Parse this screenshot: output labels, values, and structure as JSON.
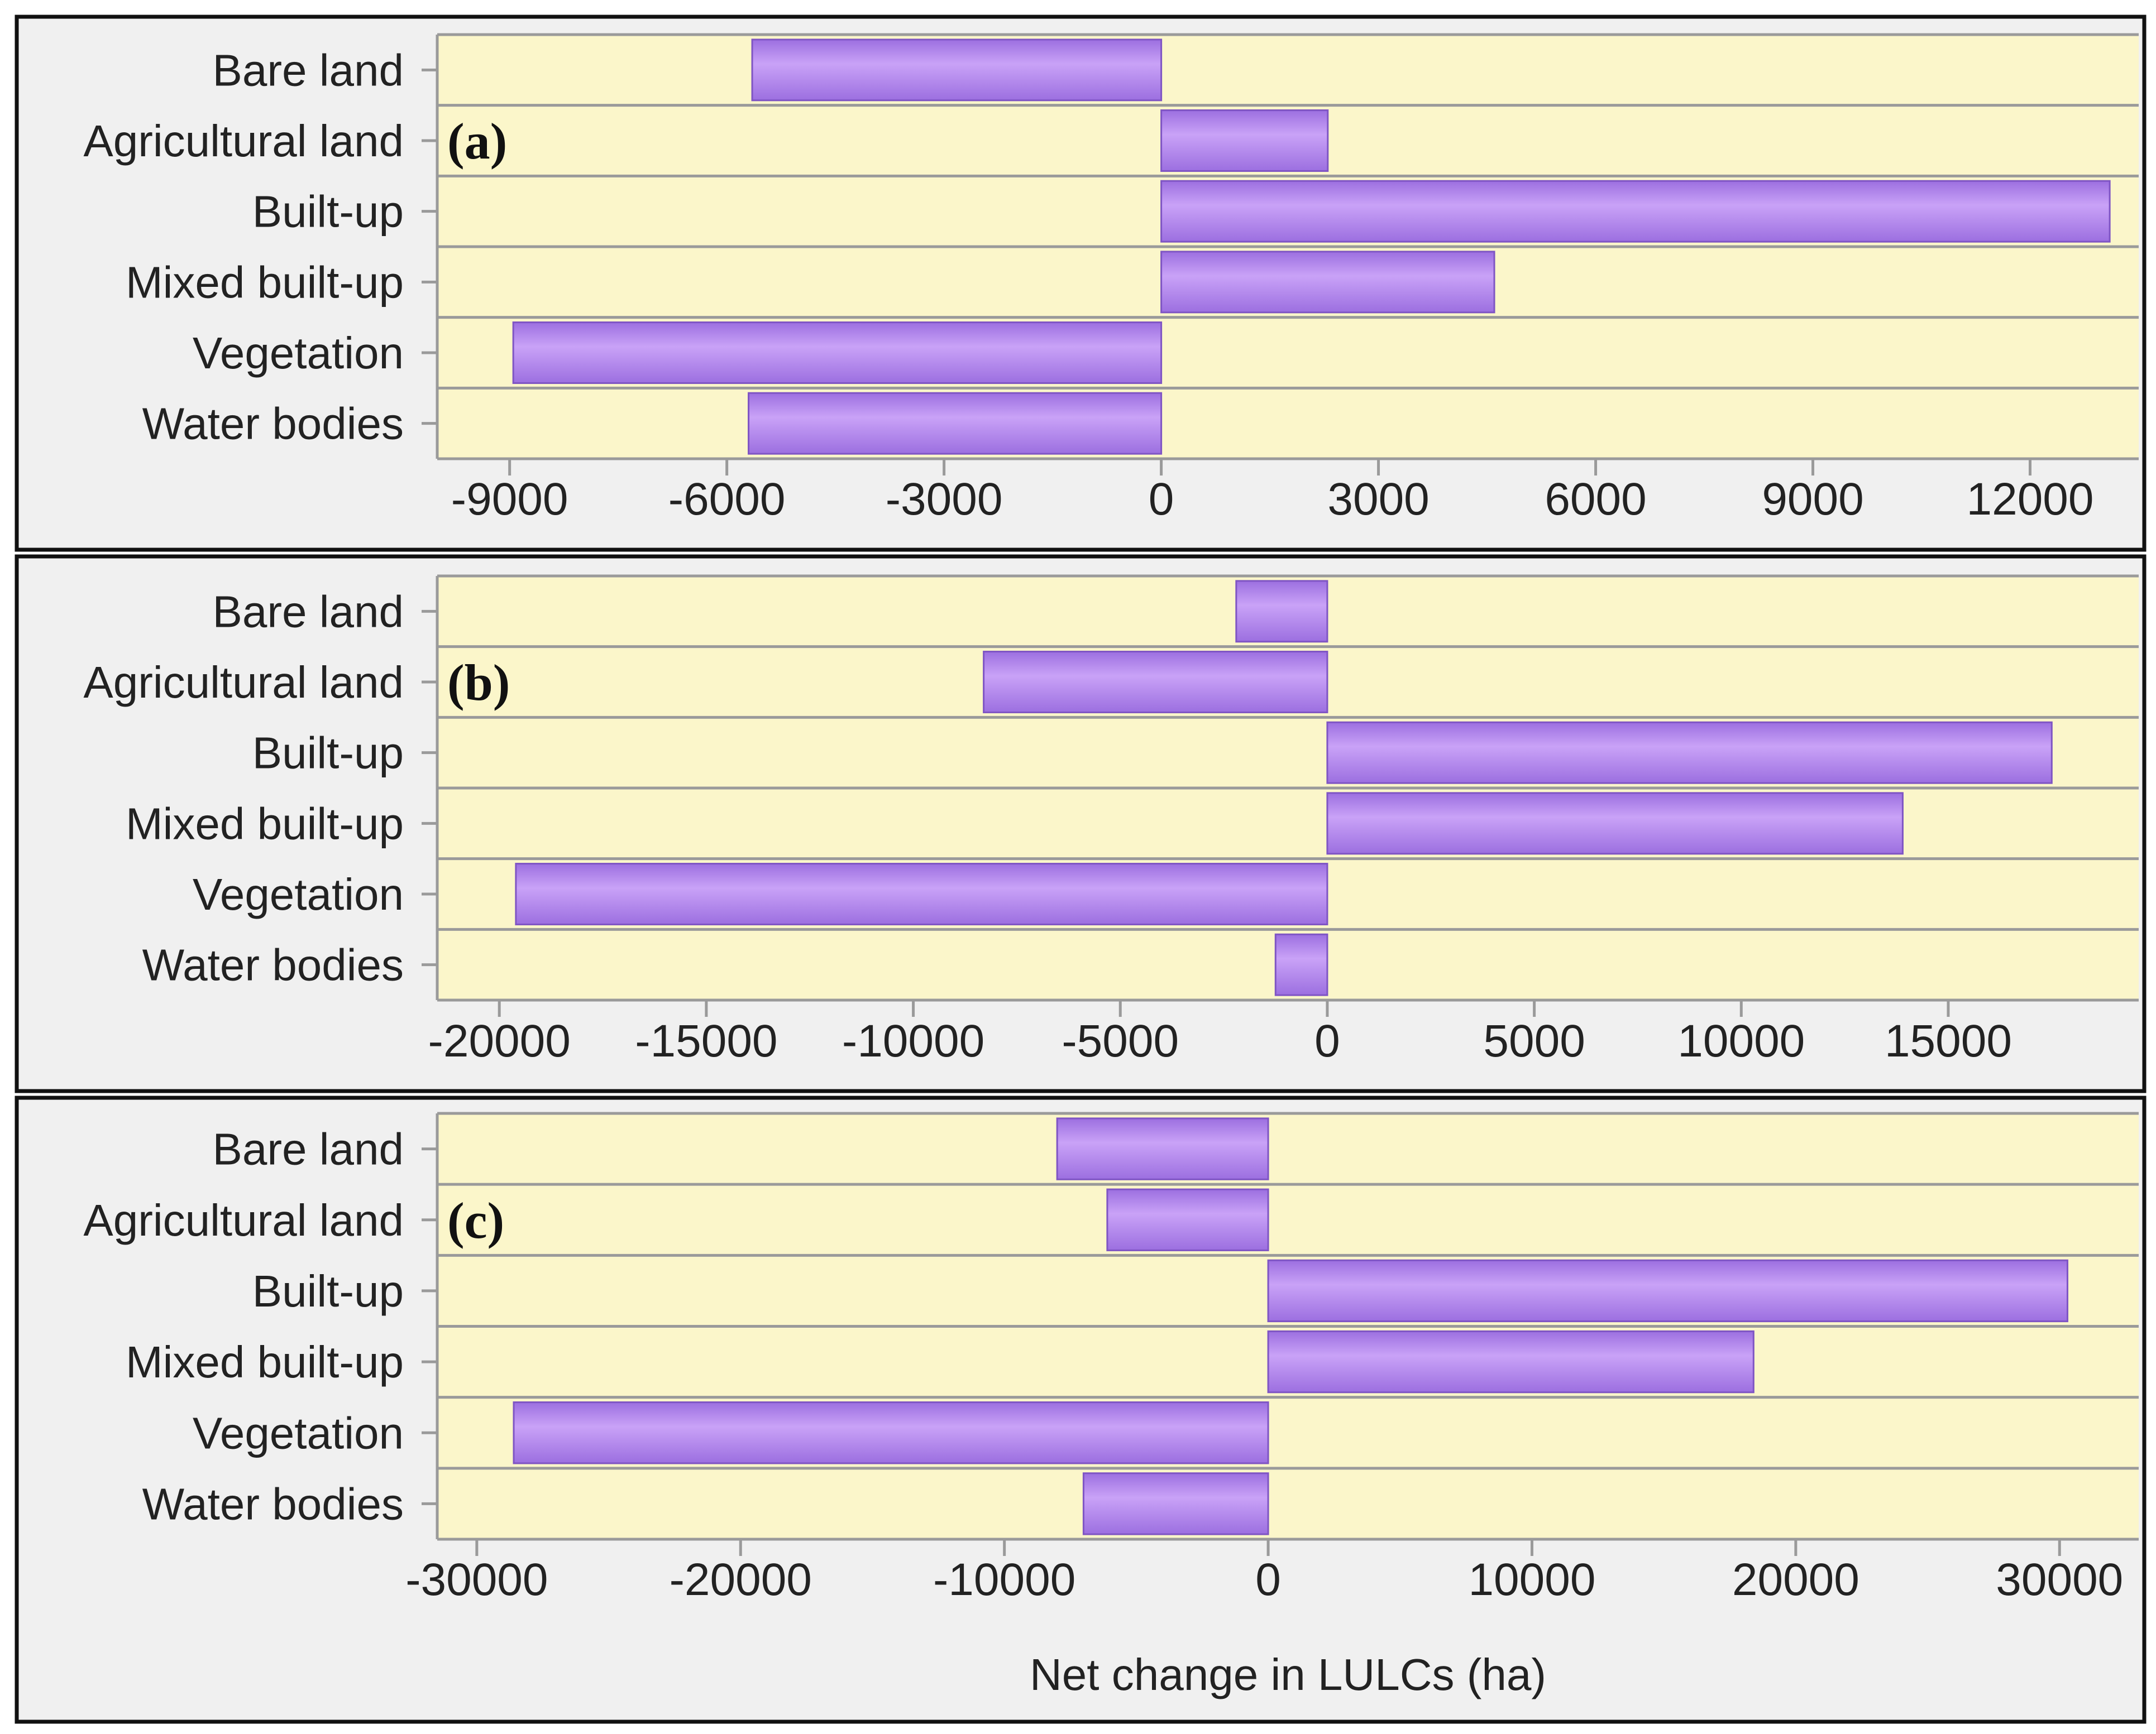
{
  "colors": {
    "panel_background": "#f0f0f0",
    "plot_background": "#fbf6ca",
    "bar_fill_light": "#c9a2f7",
    "bar_fill_dark": "#9c6fe0",
    "bar_stroke": "#7f55c4",
    "gridline": "#9a9a9a",
    "frame": "#111111"
  },
  "chart_data": [
    {
      "type": "bar",
      "orientation": "horizontal",
      "panel_label": "(a)",
      "categories": [
        "Bare land",
        "Agricultural land",
        "Built-up",
        "Mixed built-up",
        "Vegetation",
        "Water bodies"
      ],
      "values": [
        -5650,
        2300,
        13100,
        4600,
        -8950,
        -5700
      ],
      "xlim": [
        -10000,
        13500
      ],
      "xticks": [
        -9000,
        -6000,
        -3000,
        0,
        3000,
        6000,
        9000,
        12000
      ],
      "xlabel": "",
      "grid": true
    },
    {
      "type": "bar",
      "orientation": "horizontal",
      "panel_label": "(b)",
      "categories": [
        "Bare land",
        "Agricultural land",
        "Built-up",
        "Mixed built-up",
        "Vegetation",
        "Water bodies"
      ],
      "values": [
        -2200,
        -8300,
        17500,
        13900,
        -19600,
        -1250
      ],
      "xlim": [
        -21500,
        19600
      ],
      "xticks": [
        -20000,
        -15000,
        -10000,
        -5000,
        0,
        5000,
        10000,
        15000
      ],
      "xlabel": "",
      "grid": true
    },
    {
      "type": "bar",
      "orientation": "horizontal",
      "panel_label": "(c)",
      "categories": [
        "Bare land",
        "Agricultural land",
        "Built-up",
        "Mixed built-up",
        "Vegetation",
        "Water bodies"
      ],
      "values": [
        -8000,
        -6100,
        30300,
        18400,
        -28600,
        -7000
      ],
      "xlim": [
        -31500,
        33000
      ],
      "xticks": [
        -30000,
        -20000,
        -10000,
        0,
        10000,
        20000,
        30000
      ],
      "xlabel": "Net change in LULCs (ha)",
      "grid": true
    }
  ]
}
